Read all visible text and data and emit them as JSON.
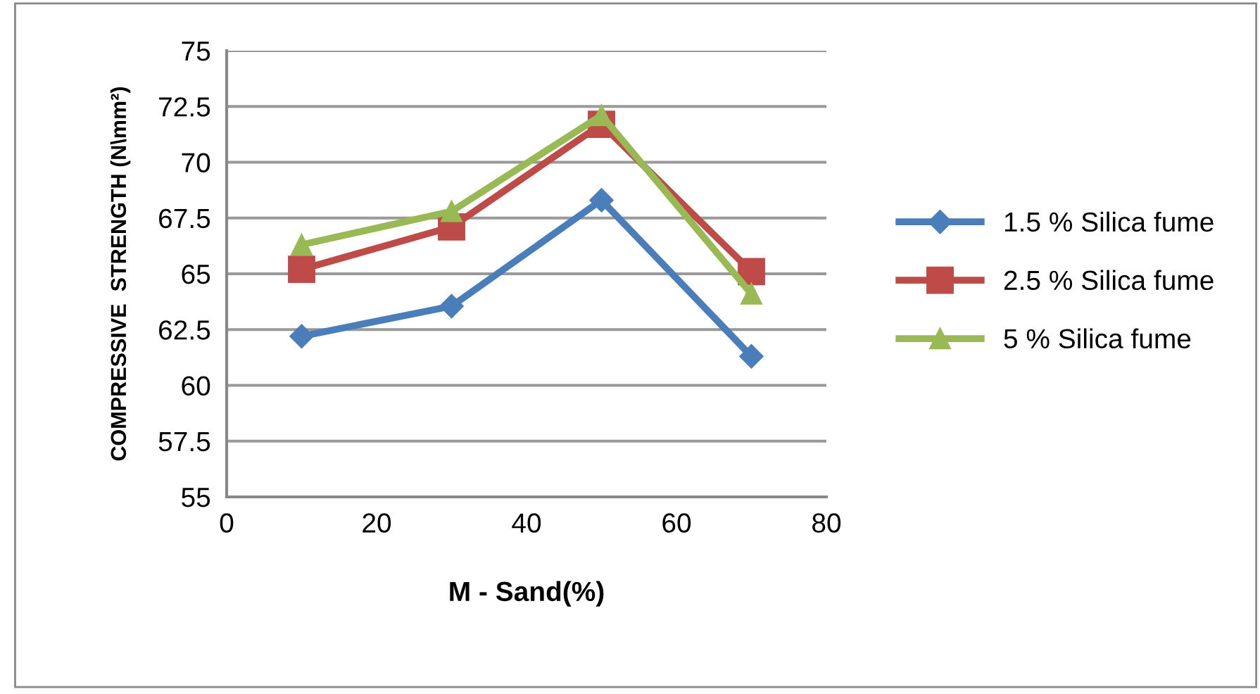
{
  "chart_data": {
    "type": "line",
    "xlabel": "M - Sand(%)",
    "ylabel": "COMPRESSIVE  STRENGTH (N\\mm²)",
    "x": [
      10,
      30,
      50,
      70
    ],
    "series": [
      {
        "name": "1.5 % Silica fume",
        "color": "#4a7ebb",
        "marker": "diamond",
        "values": [
          62.2,
          63.55,
          68.3,
          61.3
        ]
      },
      {
        "name": "2.5 % Silica fume",
        "color": "#be4b48",
        "marker": "square",
        "values": [
          65.2,
          67.1,
          71.7,
          65.1
        ]
      },
      {
        "name": "5 % Silica fume",
        "color": "#98b954",
        "marker": "triangle",
        "values": [
          66.3,
          67.8,
          72.1,
          64.1
        ]
      }
    ],
    "xlim": [
      0,
      80
    ],
    "xticks": [
      0,
      20,
      40,
      60,
      80
    ],
    "ylim": [
      55,
      75
    ],
    "yticks": [
      55,
      57.5,
      60,
      62.5,
      65,
      67.5,
      70,
      72.5,
      75
    ],
    "grid": "y",
    "legend": "right"
  }
}
